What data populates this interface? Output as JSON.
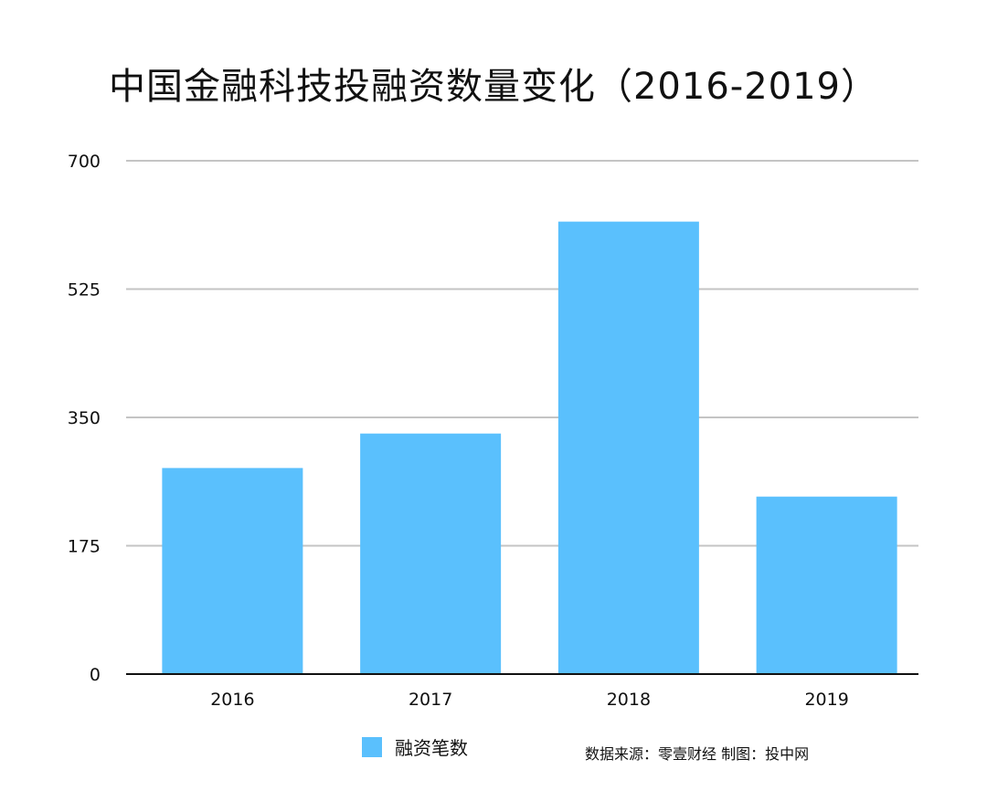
{
  "chart_data": {
    "type": "bar",
    "title": "中国金融科技投融资数量变化（2016-2019）",
    "categories": [
      "2016",
      "2017",
      "2018",
      "2019"
    ],
    "series": [
      {
        "name": "融资笔数",
        "values": [
          281,
          328,
          617,
          242
        ]
      }
    ],
    "ylim": [
      0,
      700
    ],
    "yticks": [
      0,
      175,
      350,
      525,
      700
    ],
    "grid": true,
    "legend_position": "bottom",
    "color": "#5ac0fd"
  },
  "source_note": "数据来源：零壹财经 制图：投中网"
}
